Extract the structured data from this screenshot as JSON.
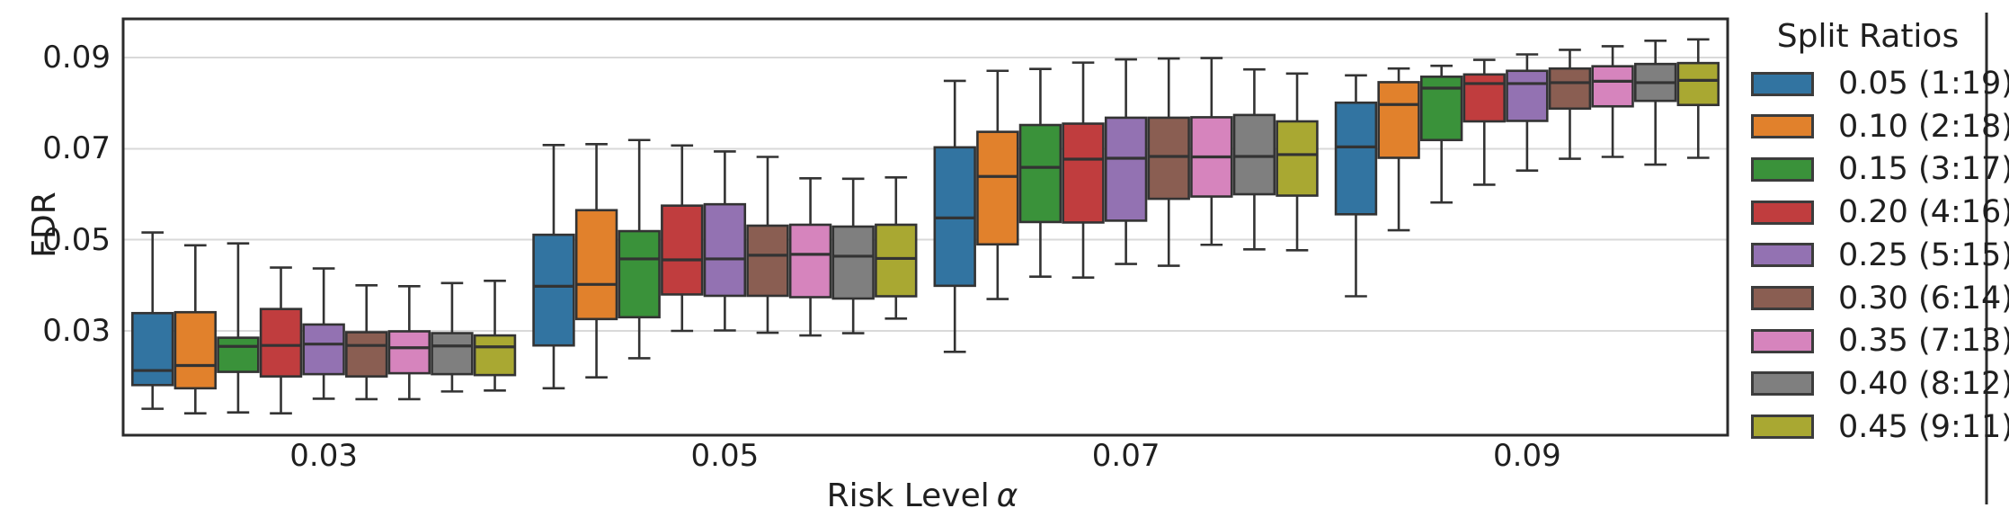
{
  "figure": {
    "ylabel": "FDR",
    "xlabel_text": "Risk Level",
    "xlabel_symbol": "α"
  },
  "legend": {
    "title": "Split Ratios",
    "entries": [
      {
        "label": "0.05 (1:19)",
        "color": "#3274a1"
      },
      {
        "label": "0.10 (2:18)",
        "color": "#e1812c"
      },
      {
        "label": "0.15 (3:17)",
        "color": "#3a923a"
      },
      {
        "label": "0.20 (4:16)",
        "color": "#c03d3e"
      },
      {
        "label": "0.25 (5:15)",
        "color": "#9372b2"
      },
      {
        "label": "0.30 (6:14)",
        "color": "#8a5e52"
      },
      {
        "label": "0.35 (7:13)",
        "color": "#d684bd"
      },
      {
        "label": "0.40 (8:12)",
        "color": "#7f7f7f"
      },
      {
        "label": "0.45 (9:11)",
        "color": "#a9a832"
      }
    ]
  },
  "chart_data": {
    "type": "grouped_boxplot",
    "title": "",
    "xlabel": "Risk Level α",
    "ylabel": "FDR",
    "x_categories": [
      "0.03",
      "0.05",
      "0.07",
      "0.09"
    ],
    "y_ticks": [
      0.03,
      0.05,
      0.07,
      0.09
    ],
    "ylim": [
      0.0071,
      0.0985
    ],
    "grid": "horizontal",
    "legend_position": "right-outside",
    "box_values_format": [
      "whisker_low",
      "q1",
      "median",
      "q3",
      "whisker_high"
    ],
    "series": [
      {
        "name": "0.05 (1:19)",
        "color": "#3274a1",
        "boxes": [
          [
            0.0129,
            0.0181,
            0.0213,
            0.0339,
            0.0516
          ],
          [
            0.0174,
            0.0268,
            0.0398,
            0.0511,
            0.0708
          ],
          [
            0.0254,
            0.0399,
            0.0548,
            0.0703,
            0.0849
          ],
          [
            0.0376,
            0.0556,
            0.0704,
            0.0801,
            0.0861
          ]
        ]
      },
      {
        "name": "0.10 (2:18)",
        "color": "#e1812c",
        "boxes": [
          [
            0.0119,
            0.0174,
            0.0224,
            0.0341,
            0.0488
          ],
          [
            0.0198,
            0.0326,
            0.0402,
            0.0565,
            0.071
          ],
          [
            0.037,
            0.049,
            0.0639,
            0.0737,
            0.0871
          ],
          [
            0.0521,
            0.068,
            0.0797,
            0.0846,
            0.0876
          ]
        ]
      },
      {
        "name": "0.15 (3:17)",
        "color": "#3a923a",
        "boxes": [
          [
            0.0121,
            0.021,
            0.0266,
            0.0285,
            0.0492
          ],
          [
            0.024,
            0.033,
            0.0458,
            0.0519,
            0.0719
          ],
          [
            0.0419,
            0.0539,
            0.0659,
            0.0752,
            0.0875
          ],
          [
            0.0582,
            0.0719,
            0.0833,
            0.0858,
            0.0882
          ]
        ]
      },
      {
        "name": "0.20 (4:16)",
        "color": "#c03d3e",
        "boxes": [
          [
            0.0119,
            0.02,
            0.0268,
            0.0348,
            0.0439
          ],
          [
            0.03,
            0.038,
            0.0456,
            0.0575,
            0.0707
          ],
          [
            0.0417,
            0.0538,
            0.0677,
            0.0755,
            0.0889
          ],
          [
            0.0621,
            0.076,
            0.0843,
            0.0863,
            0.0895
          ]
        ]
      },
      {
        "name": "0.25 (5:15)",
        "color": "#9372b2",
        "boxes": [
          [
            0.0151,
            0.0205,
            0.0271,
            0.0314,
            0.0437
          ],
          [
            0.0301,
            0.0377,
            0.0458,
            0.0578,
            0.0694
          ],
          [
            0.0447,
            0.0542,
            0.0679,
            0.0768,
            0.0896
          ],
          [
            0.0652,
            0.0761,
            0.0843,
            0.0871,
            0.0907
          ]
        ]
      },
      {
        "name": "0.30 (6:14)",
        "color": "#8a5e52",
        "boxes": [
          [
            0.015,
            0.02,
            0.0268,
            0.0297,
            0.04
          ],
          [
            0.0296,
            0.0377,
            0.0466,
            0.0531,
            0.0682
          ],
          [
            0.0443,
            0.059,
            0.0683,
            0.0768,
            0.0898
          ],
          [
            0.0678,
            0.0788,
            0.0845,
            0.0876,
            0.0917
          ]
        ]
      },
      {
        "name": "0.35 (7:13)",
        "color": "#d684bd",
        "boxes": [
          [
            0.015,
            0.0207,
            0.0263,
            0.0299,
            0.0398
          ],
          [
            0.029,
            0.0374,
            0.0468,
            0.0533,
            0.0635
          ],
          [
            0.0489,
            0.0595,
            0.0682,
            0.0769,
            0.0899
          ],
          [
            0.0682,
            0.0793,
            0.0848,
            0.0881,
            0.0925
          ]
        ]
      },
      {
        "name": "0.40 (8:12)",
        "color": "#7f7f7f",
        "boxes": [
          [
            0.0167,
            0.0205,
            0.0267,
            0.0295,
            0.0405
          ],
          [
            0.0295,
            0.0371,
            0.0464,
            0.0529,
            0.0634
          ],
          [
            0.0479,
            0.06,
            0.0683,
            0.0774,
            0.0874
          ],
          [
            0.0665,
            0.0805,
            0.0845,
            0.0886,
            0.0937
          ]
        ]
      },
      {
        "name": "0.45 (9:11)",
        "color": "#a9a832",
        "boxes": [
          [
            0.0169,
            0.0203,
            0.0265,
            0.029,
            0.041
          ],
          [
            0.0327,
            0.0376,
            0.0459,
            0.0533,
            0.0637
          ],
          [
            0.0477,
            0.0597,
            0.0687,
            0.076,
            0.0865
          ],
          [
            0.068,
            0.0796,
            0.085,
            0.0888,
            0.094
          ]
        ]
      }
    ]
  }
}
